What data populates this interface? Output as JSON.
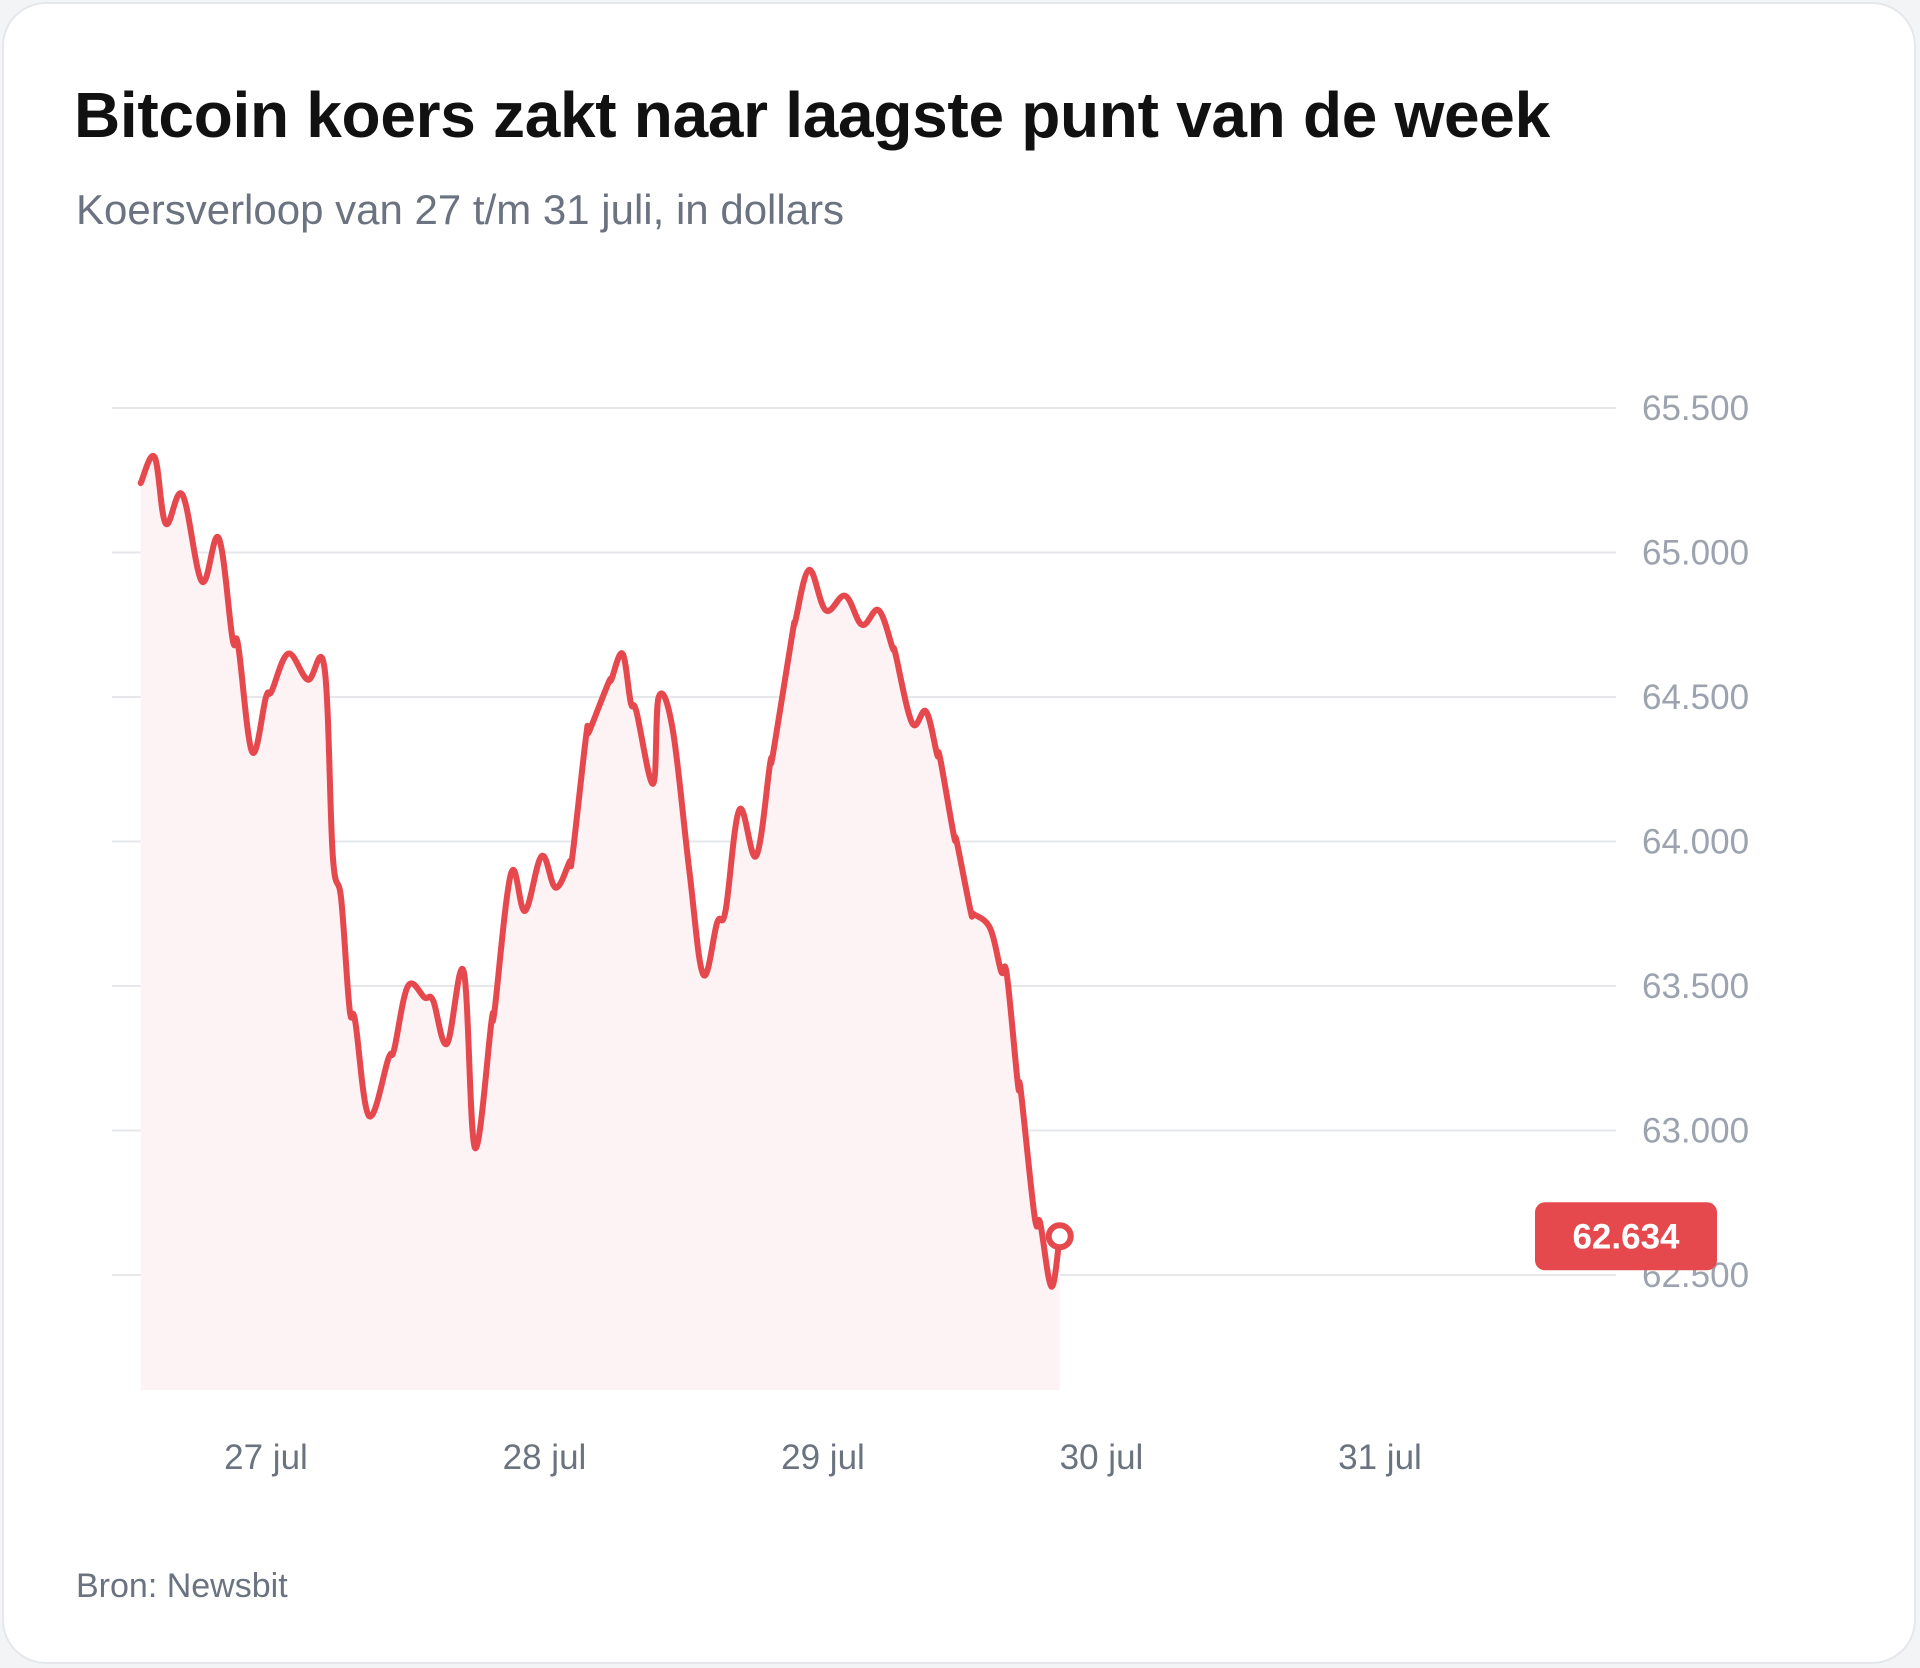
{
  "title": "Bitcoin koers zakt naar laagste punt van de week",
  "subtitle": "Koersverloop van 27 t/m 31 juli, in dollars",
  "source": "Bron: Newsbit",
  "colors": {
    "line": "#e5484d",
    "fill": "#fdf2f4",
    "grid": "#e5e7eb",
    "badge": "#e5484d"
  },
  "chart_data": {
    "type": "area",
    "title": "Bitcoin koers zakt naar laagste punt van de week",
    "subtitle": "Koersverloop van 27 t/m 31 juli, in dollars",
    "xlabel": "",
    "ylabel": "",
    "ylim": [
      62100,
      65700
    ],
    "xlim": [
      26.5,
      31.5
    ],
    "grid": true,
    "y_ticks": [
      {
        "value": 65500,
        "label": "65.500"
      },
      {
        "value": 65000,
        "label": "65.000"
      },
      {
        "value": 64500,
        "label": "64.500"
      },
      {
        "value": 64000,
        "label": "64.000"
      },
      {
        "value": 63500,
        "label": "63.500"
      },
      {
        "value": 63000,
        "label": "63.000"
      },
      {
        "value": 62500,
        "label": "62.500"
      }
    ],
    "x_ticks": [
      {
        "value": 27,
        "label": "27 jul"
      },
      {
        "value": 28,
        "label": "28 jul"
      },
      {
        "value": 29,
        "label": "29 jul"
      },
      {
        "value": 30,
        "label": "30 jul"
      },
      {
        "value": 31,
        "label": "31 jul"
      }
    ],
    "last_value_label": "62.634",
    "series": [
      {
        "values": [
          [
            26.55,
            65240
          ],
          [
            26.6,
            65330
          ],
          [
            26.64,
            65100
          ],
          [
            26.7,
            65200
          ],
          [
            26.77,
            64900
          ],
          [
            26.83,
            65050
          ],
          [
            26.88,
            64700
          ],
          [
            26.9,
            64680
          ],
          [
            26.95,
            64310
          ],
          [
            27.0,
            64500
          ],
          [
            27.02,
            64520
          ],
          [
            27.08,
            64650
          ],
          [
            27.15,
            64560
          ],
          [
            27.21,
            64600
          ],
          [
            27.24,
            63950
          ],
          [
            27.27,
            63800
          ],
          [
            27.3,
            63420
          ],
          [
            27.32,
            63380
          ],
          [
            27.37,
            63050
          ],
          [
            27.44,
            63250
          ],
          [
            27.46,
            63280
          ],
          [
            27.51,
            63500
          ],
          [
            27.57,
            63460
          ],
          [
            27.6,
            63450
          ],
          [
            27.65,
            63300
          ],
          [
            27.71,
            63550
          ],
          [
            27.75,
            62940
          ],
          [
            27.81,
            63380
          ],
          [
            27.82,
            63410
          ],
          [
            27.88,
            63890
          ],
          [
            27.93,
            63760
          ],
          [
            27.99,
            63950
          ],
          [
            28.04,
            63840
          ],
          [
            28.09,
            63930
          ],
          [
            28.1,
            63950
          ],
          [
            28.15,
            64370
          ],
          [
            28.16,
            64380
          ],
          [
            28.23,
            64550
          ],
          [
            28.24,
            64560
          ],
          [
            28.28,
            64650
          ],
          [
            28.31,
            64480
          ],
          [
            28.33,
            64450
          ],
          [
            28.39,
            64200
          ],
          [
            28.41,
            64500
          ],
          [
            28.46,
            64390
          ],
          [
            28.52,
            63900
          ],
          [
            28.57,
            63540
          ],
          [
            28.62,
            63720
          ],
          [
            28.65,
            63760
          ],
          [
            28.7,
            64110
          ],
          [
            28.76,
            63950
          ],
          [
            28.81,
            64270
          ],
          [
            28.82,
            64300
          ],
          [
            28.89,
            64720
          ],
          [
            28.9,
            64760
          ],
          [
            28.95,
            64940
          ],
          [
            29.01,
            64800
          ],
          [
            29.08,
            64850
          ],
          [
            29.14,
            64750
          ],
          [
            29.2,
            64800
          ],
          [
            29.25,
            64670
          ],
          [
            29.26,
            64650
          ],
          [
            29.32,
            64410
          ],
          [
            29.37,
            64450
          ],
          [
            29.41,
            64300
          ],
          [
            29.42,
            64290
          ],
          [
            29.47,
            64020
          ],
          [
            29.48,
            64000
          ],
          [
            29.53,
            63760
          ],
          [
            29.54,
            63750
          ],
          [
            29.6,
            63700
          ],
          [
            29.64,
            63550
          ],
          [
            29.66,
            63540
          ],
          [
            29.7,
            63160
          ],
          [
            29.71,
            63140
          ],
          [
            29.76,
            62700
          ],
          [
            29.78,
            62680
          ],
          [
            29.82,
            62460
          ],
          [
            29.85,
            62634
          ]
        ]
      }
    ]
  }
}
